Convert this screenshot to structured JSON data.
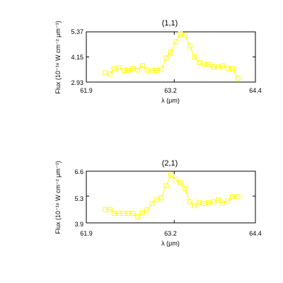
{
  "figure": {
    "background": "#ffffff",
    "marker_color": "#ffff00",
    "axis_color": "#000000"
  },
  "chart_data": [
    {
      "type": "scatter",
      "title": "(1,1)",
      "xlabel": "λ (μm)",
      "ylabel": "Flux (10⁻¹⁸ W cm⁻² μm⁻¹)",
      "xlim": [
        61.9,
        64.4
      ],
      "ylim": [
        2.93,
        5.37
      ],
      "xticks": [
        "61.9",
        "63.2",
        "64.4"
      ],
      "yticks": [
        "2.93",
        "4.15",
        "5.37"
      ],
      "marker": "square",
      "connected": true,
      "series": [
        {
          "x": [
            62.18,
            62.25,
            62.31,
            62.38,
            62.45,
            62.52,
            62.59,
            62.66,
            62.73,
            62.8,
            62.87,
            62.94,
            63.01,
            63.08,
            63.15,
            63.22,
            63.29,
            63.36,
            63.43,
            63.5,
            63.57,
            63.64,
            63.71,
            63.78,
            63.85,
            63.92,
            63.99,
            64.06,
            64.14
          ],
          "y": [
            3.37,
            3.33,
            3.57,
            3.63,
            3.5,
            3.49,
            3.6,
            3.52,
            3.73,
            3.51,
            3.48,
            3.5,
            3.56,
            4.1,
            4.38,
            4.89,
            5.27,
            5.2,
            4.69,
            4.15,
            3.88,
            3.8,
            3.79,
            3.67,
            3.66,
            3.71,
            3.61,
            3.58,
            3.13
          ]
        }
      ]
    },
    {
      "type": "scatter",
      "title": "(2,1)",
      "xlabel": "λ (μm)",
      "ylabel": "Flux (10⁻¹⁸ W cm⁻² μm⁻¹)",
      "xlim": [
        61.9,
        64.4
      ],
      "ylim": [
        3.9,
        6.6
      ],
      "xticks": [
        "61.9",
        "63.2",
        "64.4"
      ],
      "yticks": [
        "3.9",
        "5.3",
        "6.6"
      ],
      "marker": "square",
      "connected": true,
      "series": [
        {
          "x": [
            62.18,
            62.25,
            62.31,
            62.38,
            62.45,
            62.52,
            62.59,
            62.66,
            62.73,
            62.8,
            62.87,
            62.94,
            63.01,
            63.08,
            63.15,
            63.22,
            63.29,
            63.36,
            63.43,
            63.5,
            63.57,
            63.64,
            63.71,
            63.78,
            63.85,
            63.92,
            63.99,
            64.06,
            64.14
          ],
          "y": [
            4.6,
            4.6,
            4.4,
            4.4,
            4.4,
            4.4,
            4.4,
            4.23,
            4.46,
            4.58,
            4.91,
            5.12,
            5.21,
            5.85,
            6.4,
            6.16,
            6.0,
            5.7,
            5.0,
            4.8,
            4.97,
            4.92,
            4.96,
            5.01,
            5.09,
            4.93,
            5.04,
            5.26,
            5.27
          ]
        }
      ]
    }
  ]
}
